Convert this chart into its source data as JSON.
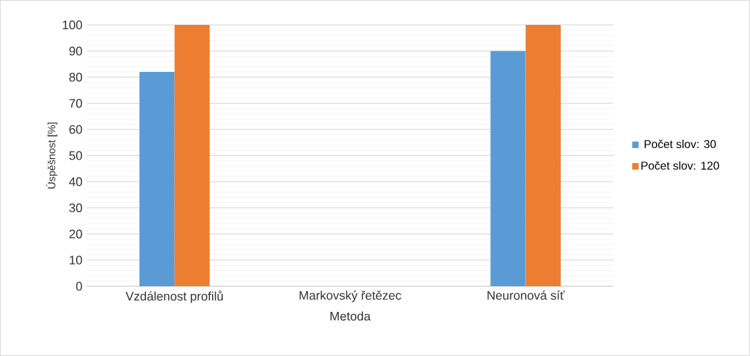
{
  "chart_data": {
    "type": "bar",
    "xlabel": "Metoda",
    "ylabel": "Úspěšnost [%]",
    "categories": [
      "Vzdálenost profilů",
      "Markovský řetězec",
      "Neuronová síť"
    ],
    "series": [
      {
        "name": "Počet slov: 30",
        "color": "#5b9bd5",
        "values": [
          82,
          null,
          90
        ]
      },
      {
        "name": "Počet slov: 120",
        "color": "#ed7d31",
        "values": [
          100,
          null,
          100
        ]
      }
    ],
    "ylim": [
      0,
      100
    ],
    "yticks": [
      0,
      10,
      20,
      30,
      40,
      50,
      60,
      70,
      80,
      90,
      100
    ],
    "grid": "y",
    "legend": "right"
  }
}
